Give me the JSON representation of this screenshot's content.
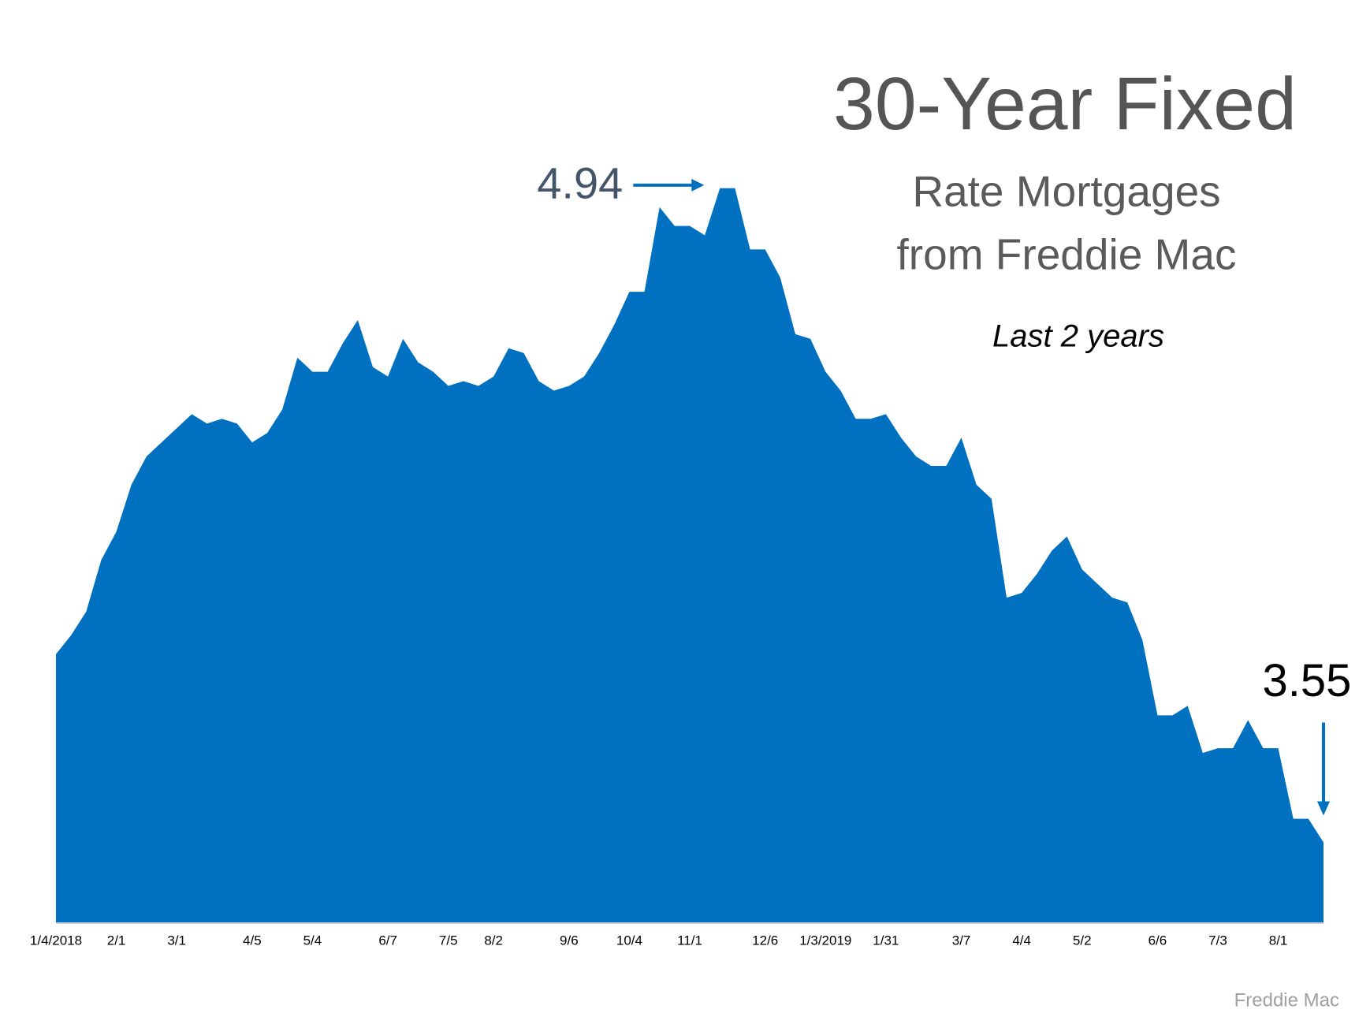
{
  "chart_data": {
    "type": "area",
    "title": "30-Year Fixed",
    "subtitle": [
      "Rate Mortgages",
      "from Freddie Mac"
    ],
    "note": "Last 2 years",
    "source": "Freddie Mac",
    "color": "#0070c0",
    "ylim": [
      3.38,
      5.0
    ],
    "x": [
      "1/4/2018",
      null,
      null,
      null,
      "2/1",
      null,
      null,
      null,
      "3/1",
      null,
      null,
      null,
      null,
      "4/5",
      null,
      null,
      null,
      "5/4",
      null,
      null,
      null,
      null,
      "6/7",
      null,
      null,
      null,
      "7/5",
      null,
      null,
      "8/2",
      null,
      null,
      null,
      null,
      "9/6",
      null,
      null,
      null,
      "10/4",
      null,
      null,
      null,
      "11/1",
      null,
      null,
      null,
      null,
      "12/6",
      null,
      null,
      null,
      "1/3/2019",
      null,
      null,
      null,
      "1/31",
      null,
      null,
      null,
      null,
      "3/7",
      null,
      null,
      null,
      "4/4",
      null,
      null,
      null,
      "5/2",
      null,
      null,
      null,
      null,
      "6/6",
      null,
      null,
      null,
      "7/3",
      null,
      null,
      null,
      "8/1",
      null,
      null,
      null
    ],
    "values": [
      3.95,
      3.99,
      4.04,
      4.15,
      4.21,
      4.31,
      4.37,
      4.4,
      4.43,
      4.46,
      4.44,
      4.45,
      4.44,
      4.4,
      4.42,
      4.47,
      4.58,
      4.55,
      4.55,
      4.61,
      4.66,
      4.56,
      4.54,
      4.62,
      4.57,
      4.55,
      4.52,
      4.53,
      4.52,
      4.54,
      4.6,
      4.59,
      4.53,
      4.51,
      4.52,
      4.54,
      4.59,
      4.65,
      4.72,
      4.72,
      4.9,
      4.86,
      4.86,
      4.84,
      4.94,
      4.94,
      4.81,
      4.81,
      4.75,
      4.63,
      4.62,
      4.55,
      4.51,
      4.45,
      4.45,
      4.46,
      4.41,
      4.37,
      4.35,
      4.35,
      4.41,
      4.31,
      4.28,
      4.07,
      4.08,
      4.12,
      4.17,
      4.2,
      4.13,
      4.1,
      4.07,
      4.06,
      3.98,
      3.82,
      3.82,
      3.84,
      3.74,
      3.75,
      3.75,
      3.81,
      3.75,
      3.75,
      3.6,
      3.6,
      3.55
    ]
  }
}
